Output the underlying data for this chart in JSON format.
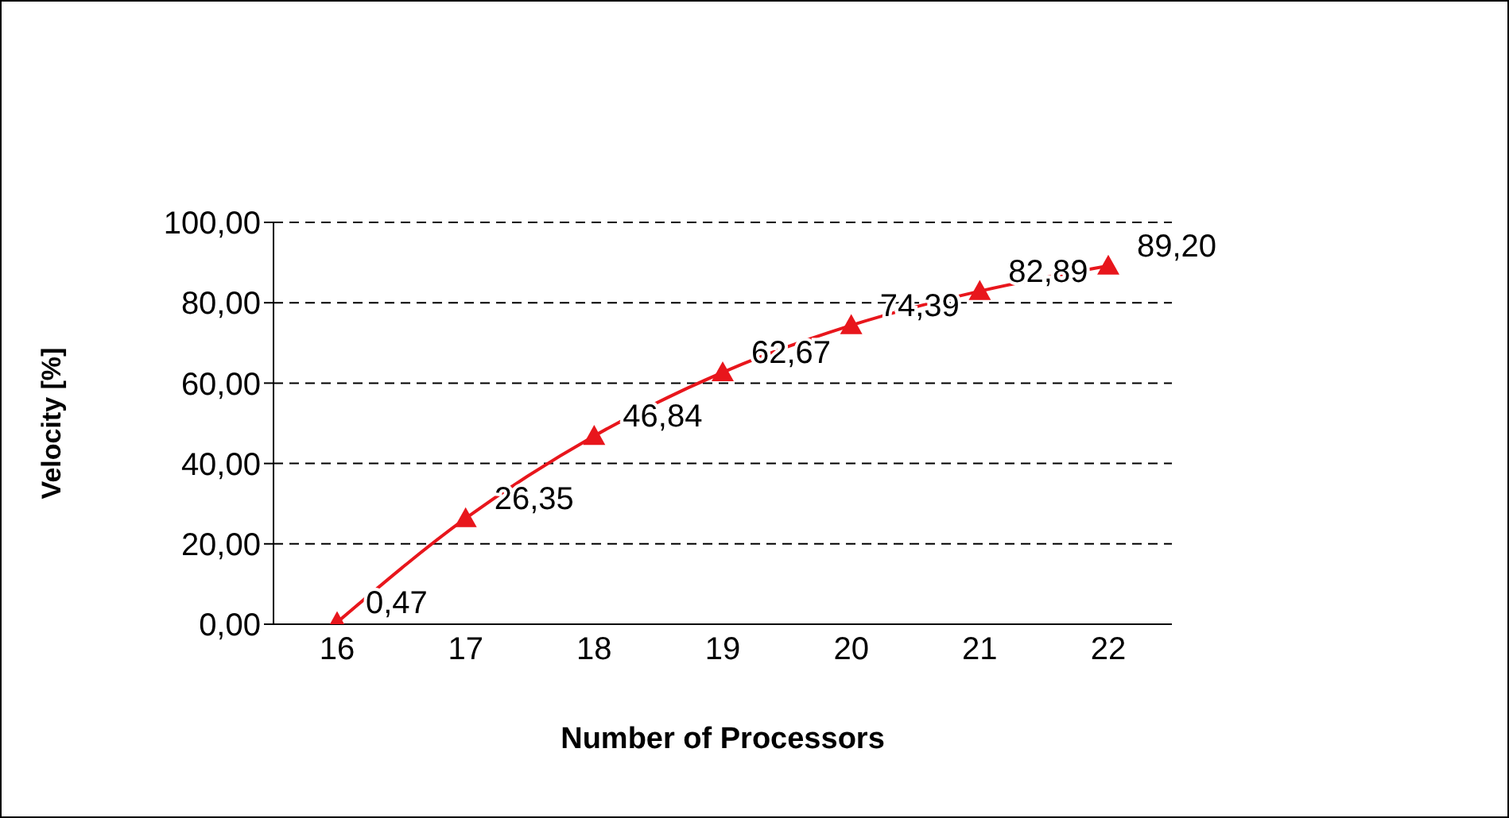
{
  "chart_data": {
    "type": "line",
    "xlabel": "Number of Processors",
    "ylabel": "Velocity [%]",
    "categories": [
      "16",
      "17",
      "18",
      "19",
      "20",
      "21",
      "22"
    ],
    "series": [
      {
        "color": "#e8161c",
        "values": [
          0.47,
          26.35,
          46.84,
          62.67,
          74.39,
          82.89,
          89.2
        ],
        "value_labels": [
          "0,47",
          "26,35",
          "46,84",
          "62,67",
          "74,39",
          "82,89",
          "89,20"
        ]
      }
    ],
    "ylim": [
      0,
      100
    ],
    "yticks": [
      {
        "value": 0,
        "label": "0,00"
      },
      {
        "value": 20,
        "label": "20,00"
      },
      {
        "value": 40,
        "label": "40,00"
      },
      {
        "value": 60,
        "label": "60,00"
      },
      {
        "value": 80,
        "label": "80,00"
      },
      {
        "value": 100,
        "label": "100,00"
      }
    ],
    "grid": "y",
    "legend": false,
    "marker": "triangle",
    "line_style": "solid"
  }
}
